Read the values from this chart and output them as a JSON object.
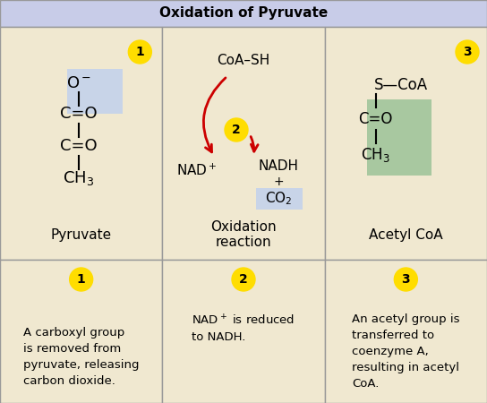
{
  "title": "Oxidation of Pyruvate",
  "title_bg": "#c8cce8",
  "cell_bg": "#f0e8d0",
  "grid_line_color": "#999999",
  "panel1_title": "Pyruvate",
  "panel2_title": "Oxidation\nreaction",
  "panel3_title": "Acetyl CoA",
  "panel4_text": "A carboxyl group\nis removed from\npyruvate, releasing\ncarbon dioxide.",
  "panel5_text": "NAD$^+$ is reduced\nto NADH.",
  "panel6_text": "An acetyl group is\ntransferred to\ncoenzyme A,\nresulting in acetyl\nCoA.",
  "yellow_badge_color": "#ffdd00",
  "blue_highlight": "#c8d4e8",
  "green_highlight": "#a8c8a0",
  "arrow_color": "#cc0000"
}
